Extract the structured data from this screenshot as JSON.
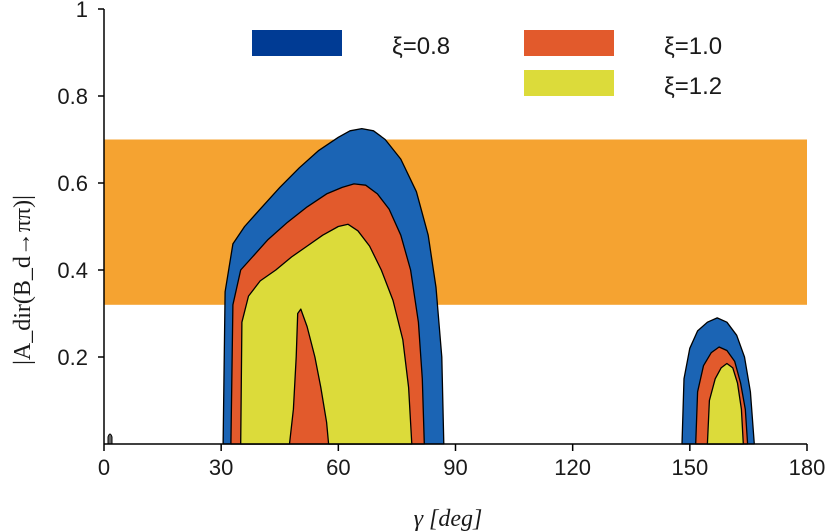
{
  "chart_data": {
    "type": "area",
    "xlabel": "γ [deg]",
    "ylabel": "|A_dir(B_d→ππ)|",
    "xlim": [
      0,
      180
    ],
    "ylim": [
      0,
      1
    ],
    "x_ticks": [
      0,
      30,
      60,
      90,
      120,
      150,
      180
    ],
    "y_ticks": [
      0.2,
      0.4,
      0.6,
      0.8,
      1
    ],
    "y_tick_labels": [
      "0.2",
      "0.4",
      "0.6",
      "0.8",
      "1"
    ],
    "grid": false,
    "legend_position": "top",
    "band": {
      "color": "#f5a331",
      "x_range": [
        0,
        180
      ],
      "y_range": [
        0.32,
        0.7
      ]
    },
    "series": [
      {
        "name": "ξ=0.8",
        "color": "#1b64b4",
        "regions": [
          {
            "upper": [
              [
                30.5,
                0.0
              ],
              [
                31,
                0.35
              ],
              [
                33,
                0.46
              ],
              [
                36,
                0.5
              ],
              [
                40,
                0.54
              ],
              [
                45,
                0.59
              ],
              [
                50,
                0.635
              ],
              [
                55,
                0.675
              ],
              [
                60,
                0.705
              ],
              [
                63,
                0.72
              ],
              [
                66,
                0.725
              ],
              [
                69,
                0.72
              ],
              [
                72,
                0.7
              ],
              [
                76,
                0.655
              ],
              [
                80,
                0.58
              ],
              [
                83,
                0.48
              ],
              [
                85,
                0.36
              ],
              [
                86.5,
                0.2
              ],
              [
                87,
                0.0
              ]
            ],
            "lower": [
              [
                30.5,
                0.0
              ],
              [
                87,
                0.0
              ]
            ]
          },
          {
            "upper": [
              [
                148,
                0.0
              ],
              [
                148.5,
                0.15
              ],
              [
                150,
                0.22
              ],
              [
                152,
                0.26
              ],
              [
                154.5,
                0.28
              ],
              [
                157,
                0.29
              ],
              [
                159.5,
                0.28
              ],
              [
                162,
                0.25
              ],
              [
                164,
                0.2
              ],
              [
                165.5,
                0.12
              ],
              [
                166.5,
                0.0
              ]
            ],
            "lower": [
              [
                148,
                0.0
              ],
              [
                166.5,
                0.0
              ]
            ]
          }
        ]
      },
      {
        "name": "ξ=1.0",
        "color": "#e25a2c",
        "regions": [
          {
            "upper": [
              [
                32.5,
                0.0
              ],
              [
                33,
                0.32
              ],
              [
                35,
                0.4
              ],
              [
                38,
                0.43
              ],
              [
                42,
                0.47
              ],
              [
                47,
                0.51
              ],
              [
                52,
                0.545
              ],
              [
                57,
                0.575
              ],
              [
                61,
                0.59
              ],
              [
                64,
                0.598
              ],
              [
                67,
                0.595
              ],
              [
                70,
                0.575
              ],
              [
                73,
                0.54
              ],
              [
                76,
                0.48
              ],
              [
                78.5,
                0.4
              ],
              [
                80.5,
                0.28
              ],
              [
                81.5,
                0.15
              ],
              [
                82,
                0.0
              ]
            ],
            "lower": [
              [
                32.5,
                0.0
              ],
              [
                82,
                0.0
              ]
            ]
          },
          {
            "upper": [
              [
                151.5,
                0.0
              ],
              [
                152,
                0.12
              ],
              [
                153.5,
                0.18
              ],
              [
                155.5,
                0.21
              ],
              [
                157.5,
                0.223
              ],
              [
                159.5,
                0.215
              ],
              [
                161.5,
                0.19
              ],
              [
                163,
                0.14
              ],
              [
                164.2,
                0.08
              ],
              [
                164.8,
                0.0
              ]
            ],
            "lower": [
              [
                151.5,
                0.0
              ],
              [
                164.8,
                0.0
              ]
            ]
          }
        ]
      },
      {
        "name": "ξ=1.2",
        "color": "#dcdb3a",
        "regions": [
          {
            "upper": [
              [
                35,
                0.0
              ],
              [
                35.3,
                0.28
              ],
              [
                37,
                0.34
              ],
              [
                40,
                0.375
              ],
              [
                44,
                0.4
              ],
              [
                48,
                0.43
              ],
              [
                52,
                0.455
              ],
              [
                56,
                0.48
              ],
              [
                60,
                0.5
              ],
              [
                62.5,
                0.505
              ],
              [
                65,
                0.49
              ],
              [
                68,
                0.455
              ],
              [
                71,
                0.4
              ],
              [
                74,
                0.33
              ],
              [
                76.5,
                0.24
              ],
              [
                78,
                0.13
              ],
              [
                78.8,
                0.0
              ]
            ],
            "lower": [
              [
                35,
                0.0
              ],
              [
                47.5,
                0.0
              ],
              [
                48.5,
                0.08
              ],
              [
                49.2,
                0.2
              ],
              [
                49.6,
                0.3
              ],
              [
                50.4,
                0.31
              ],
              [
                52,
                0.27
              ],
              [
                54,
                0.2
              ],
              [
                55.5,
                0.13
              ],
              [
                57,
                0.05
              ],
              [
                57.5,
                0.0
              ],
              [
                78.8,
                0.0
              ]
            ]
          },
          {
            "upper": [
              [
                154.5,
                0.0
              ],
              [
                155,
                0.1
              ],
              [
                156.5,
                0.15
              ],
              [
                158,
                0.175
              ],
              [
                159.5,
                0.185
              ],
              [
                161,
                0.175
              ],
              [
                162.2,
                0.14
              ],
              [
                163.2,
                0.08
              ],
              [
                163.7,
                0.0
              ]
            ],
            "lower": [
              [
                154.5,
                0.0
              ],
              [
                163.7,
                0.0
              ]
            ]
          }
        ]
      }
    ],
    "legend": [
      {
        "label": "ξ=0.8",
        "color": "#003b94"
      },
      {
        "label": "ξ=1.0",
        "color": "#e25a2c"
      },
      {
        "label": "ξ=1.2",
        "color": "#dcdb3a"
      }
    ]
  }
}
